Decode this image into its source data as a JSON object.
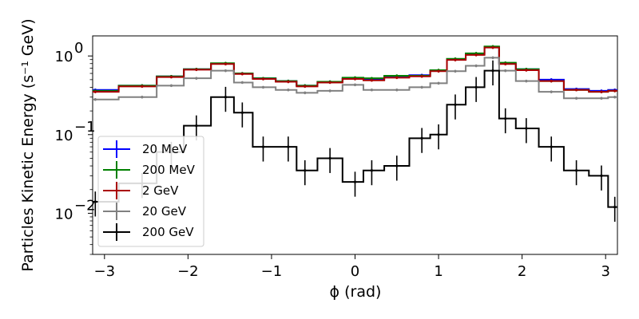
{
  "chart_data": {
    "type": "line",
    "xlabel": "ϕ (rad)",
    "ylabel": "Particles Kinetic Energy (s⁻¹ GeV)",
    "xlim": [
      -3.1416,
      3.1416
    ],
    "ylim": [
      0.003,
      1.8
    ],
    "yscale": "log",
    "legend_position": "lower-left",
    "grid": false,
    "x_ticks": [
      -3,
      -2,
      -1,
      0,
      1,
      2,
      3
    ],
    "x_tick_labels": [
      "−3",
      "−2",
      "−1",
      "0",
      "1",
      "2",
      "3"
    ],
    "y_ticks": [
      0.01,
      0.1,
      1
    ],
    "y_tick_labels": [
      "10",
      "10",
      "10"
    ],
    "y_tick_exponents": [
      "−2",
      "−1",
      "0"
    ],
    "x": [
      -3.11,
      -2.55,
      -2.2,
      -1.9,
      -1.55,
      -1.35,
      -1.1,
      -0.8,
      -0.6,
      -0.3,
      0.0,
      0.2,
      0.5,
      0.8,
      1.0,
      1.2,
      1.45,
      1.65,
      1.8,
      2.05,
      2.35,
      2.65,
      2.95,
      3.11
    ],
    "series": [
      {
        "name": "20 MeV",
        "color": "#0000ff",
        "values": [
          0.37,
          0.42,
          0.55,
          0.68,
          0.8,
          0.6,
          0.52,
          0.48,
          0.42,
          0.47,
          0.52,
          0.5,
          0.55,
          0.57,
          0.65,
          0.9,
          1.05,
          1.3,
          0.8,
          0.68,
          0.5,
          0.38,
          0.36,
          0.37
        ]
      },
      {
        "name": "200 MeV",
        "color": "#008000",
        "values": [
          0.36,
          0.42,
          0.55,
          0.68,
          0.81,
          0.6,
          0.52,
          0.48,
          0.42,
          0.47,
          0.53,
          0.52,
          0.56,
          0.56,
          0.66,
          0.92,
          1.08,
          1.32,
          0.82,
          0.68,
          0.48,
          0.37,
          0.35,
          0.36
        ]
      },
      {
        "name": "2 GeV",
        "color": "#aa0000",
        "values": [
          0.35,
          0.41,
          0.54,
          0.67,
          0.79,
          0.59,
          0.51,
          0.47,
          0.41,
          0.46,
          0.51,
          0.49,
          0.53,
          0.55,
          0.64,
          0.89,
          1.03,
          1.28,
          0.79,
          0.66,
          0.48,
          0.37,
          0.35,
          0.36
        ]
      },
      {
        "name": "20 GeV",
        "color": "#808080",
        "values": [
          0.28,
          0.3,
          0.42,
          0.52,
          0.65,
          0.46,
          0.4,
          0.37,
          0.34,
          0.36,
          0.43,
          0.37,
          0.37,
          0.4,
          0.45,
          0.64,
          0.75,
          0.95,
          0.65,
          0.48,
          0.35,
          0.29,
          0.29,
          0.3
        ]
      },
      {
        "name": "200 GeV",
        "color": "#000000",
        "values": [
          0.014,
          0.024,
          0.06,
          0.13,
          0.3,
          0.19,
          0.07,
          0.07,
          0.035,
          0.05,
          0.025,
          0.035,
          0.04,
          0.09,
          0.1,
          0.24,
          0.4,
          0.65,
          0.16,
          0.12,
          0.07,
          0.035,
          0.03,
          0.012
        ]
      }
    ]
  }
}
